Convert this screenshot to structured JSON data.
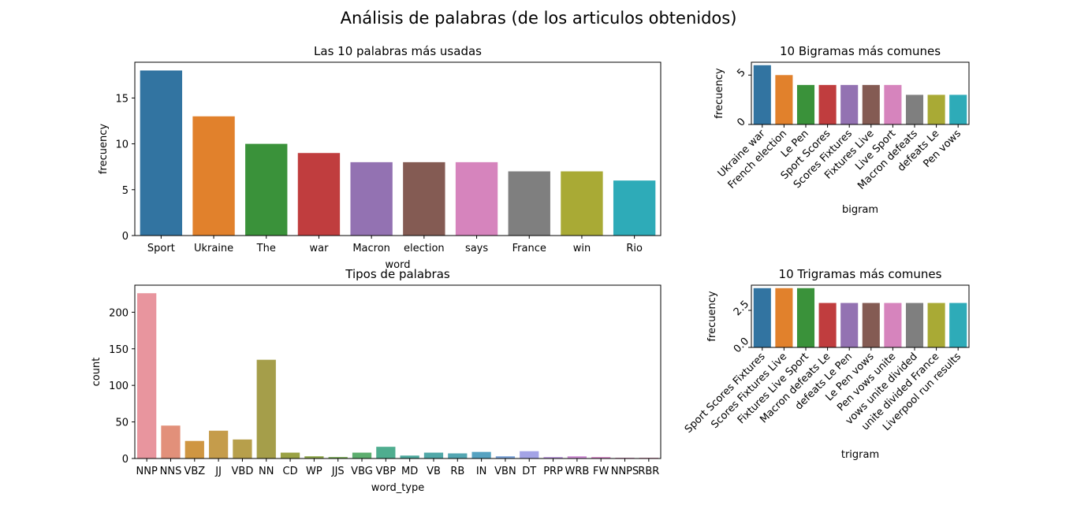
{
  "suptitle": "Análisis de palabras (de los articulos obtenidos)",
  "chart_data": [
    {
      "type": "bar",
      "title": "Las 10 palabras más usadas",
      "xlabel": "word",
      "ylabel": "frecuency",
      "categories": [
        "Sport",
        "Ukraine",
        "The",
        "war",
        "Macron",
        "election",
        "says",
        "France",
        "win",
        "Rio"
      ],
      "values": [
        18,
        13,
        10,
        9,
        8,
        8,
        8,
        7,
        7,
        6
      ],
      "ylim": [
        0,
        18.9
      ],
      "yticks": [
        0,
        5,
        10,
        15
      ],
      "ytick_labels": [
        "0",
        "5",
        "10",
        "15"
      ],
      "colors": [
        "#3274a1",
        "#e1812c",
        "#3a923a",
        "#c03d3e",
        "#9372b2",
        "#845b53",
        "#d684bd",
        "#7f7f7f",
        "#a9aa35",
        "#2eabb8"
      ],
      "grid": false,
      "legend": "none"
    },
    {
      "type": "bar",
      "title": "10 Bigramas más comunes",
      "xlabel": "bigram",
      "ylabel": "frecuency",
      "categories": [
        "Ukraine war",
        "French election",
        "Le Pen",
        "Sport Scores",
        "Scores Fixtures",
        "Fixtures Live",
        "Live Sport",
        "Macron defeats",
        "defeats Le",
        "Pen vows"
      ],
      "values": [
        6,
        5,
        4,
        4,
        4,
        4,
        4,
        3,
        3,
        3
      ],
      "ylim": [
        0,
        6.3
      ],
      "yticks": [
        0,
        5
      ],
      "ytick_labels": [
        "0",
        "5"
      ],
      "colors": [
        "#3274a1",
        "#e1812c",
        "#3a923a",
        "#c03d3e",
        "#9372b2",
        "#845b53",
        "#d684bd",
        "#7f7f7f",
        "#a9aa35",
        "#2eabb8"
      ],
      "grid": false,
      "legend": "none"
    },
    {
      "type": "bar",
      "title": "Tipos de palabras",
      "xlabel": "word_type",
      "ylabel": "count",
      "categories": [
        "NNP",
        "NNS",
        "VBZ",
        "JJ",
        "VBD",
        "NN",
        "CD",
        "WP",
        "JJS",
        "VBG",
        "VBP",
        "MD",
        "VB",
        "RB",
        "IN",
        "VBN",
        "DT",
        "PRP",
        "WRB",
        "FW",
        "NNPS",
        "RBR"
      ],
      "values": [
        226,
        45,
        24,
        38,
        26,
        135,
        8,
        3,
        2,
        8,
        16,
        4,
        8,
        7,
        9,
        3,
        10,
        2,
        3,
        2,
        1,
        1
      ],
      "ylim": [
        0,
        237
      ],
      "yticks": [
        0,
        50,
        100,
        150,
        200
      ],
      "ytick_labels": [
        "0",
        "50",
        "100",
        "150",
        "200"
      ],
      "colors": [
        "#e8959e",
        "#e2907a",
        "#cf9642",
        "#c59c4b",
        "#b79f4b",
        "#a59e4a",
        "#9aa245",
        "#8ea649",
        "#79ac55",
        "#5dae6f",
        "#4fad8f",
        "#4eaa9e",
        "#51a8a8",
        "#53a6b2",
        "#56a2c1",
        "#7ba3d8",
        "#a3a3e6",
        "#c09ae0",
        "#d08fd6",
        "#dc8bcb",
        "#e28cbf",
        "#e693b2"
      ],
      "grid": false,
      "legend": "none"
    },
    {
      "type": "bar",
      "title": "10 Trigramas más comunes",
      "xlabel": "trigram",
      "ylabel": "frecuency",
      "categories": [
        "Sport Scores Fixtures",
        "Scores Fixtures Live",
        "Fixtures Live Sport",
        "Macron defeats Le",
        "defeats Le Pen",
        "Le Pen vows",
        "Pen vows unite",
        "vows unite divided",
        "unite divided France",
        "Liverpool run results"
      ],
      "values": [
        4,
        4,
        4,
        3,
        3,
        3,
        3,
        3,
        3,
        3
      ],
      "ylim": [
        0,
        4.2
      ],
      "yticks": [
        0,
        2.5
      ],
      "ytick_labels": [
        "0.0",
        "2.5"
      ],
      "colors": [
        "#3274a1",
        "#e1812c",
        "#3a923a",
        "#c03d3e",
        "#9372b2",
        "#845b53",
        "#d684bd",
        "#7f7f7f",
        "#a9aa35",
        "#2eabb8"
      ],
      "grid": false,
      "legend": "none"
    }
  ]
}
